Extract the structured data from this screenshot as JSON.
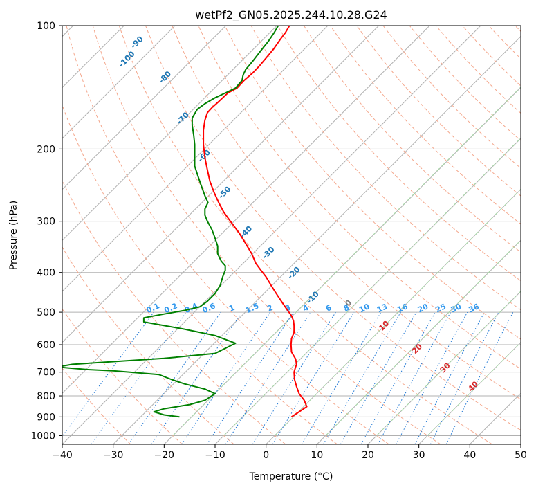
{
  "chart_data": {
    "type": "line",
    "title": "wetPf2_GN05.2025.244.10.28.G24",
    "xlabel": "Temperature (°C)",
    "ylabel": "Pressure (hPa)",
    "xlim": [
      -40,
      50
    ],
    "ylim": [
      1050,
      100
    ],
    "y_scale": "log",
    "grid": true,
    "x_ticks": [
      "−40",
      "−30",
      "−20",
      "−10",
      "0",
      "10",
      "20",
      "30",
      "40",
      "50"
    ],
    "y_ticks": [
      "100",
      "200",
      "300",
      "400",
      "500",
      "600",
      "700",
      "800",
      "900",
      "1000"
    ],
    "series": [
      {
        "color": "#ff0000",
        "points": [
          [
            5,
            900
          ],
          [
            6.5,
            875
          ],
          [
            8,
            850
          ],
          [
            7.5,
            820
          ],
          [
            6.5,
            790
          ],
          [
            6,
            760
          ],
          [
            5.6,
            730
          ],
          [
            5.5,
            700
          ],
          [
            5.8,
            680
          ],
          [
            6,
            670
          ],
          [
            5.8,
            650
          ],
          [
            5,
            625
          ],
          [
            4.9,
            600
          ],
          [
            5,
            580
          ],
          [
            5.5,
            560
          ],
          [
            5.5,
            540
          ],
          [
            5.4,
            525
          ],
          [
            5,
            510
          ],
          [
            4,
            490
          ],
          [
            3,
            470
          ],
          [
            2,
            450
          ],
          [
            1,
            430
          ],
          [
            0,
            410
          ],
          [
            -1,
            395
          ],
          [
            -2,
            380
          ],
          [
            -2.8,
            360
          ],
          [
            -4,
            340
          ],
          [
            -5.3,
            320
          ],
          [
            -7,
            300
          ],
          [
            -8.3,
            285
          ],
          [
            -9.3,
            270
          ],
          [
            -10.2,
            255
          ],
          [
            -11,
            240
          ],
          [
            -11.5,
            225
          ],
          [
            -12,
            210
          ],
          [
            -12.3,
            195
          ],
          [
            -12.3,
            180
          ],
          [
            -12,
            170
          ],
          [
            -11.5,
            163
          ],
          [
            -10.5,
            158
          ],
          [
            -9.5,
            154
          ],
          [
            -8.5,
            150
          ],
          [
            -7.5,
            146
          ],
          [
            -5.7,
            142
          ],
          [
            -4.3,
            136
          ],
          [
            -2.5,
            130
          ],
          [
            -1.2,
            125
          ],
          [
            0,
            120
          ],
          [
            1.5,
            114
          ],
          [
            2.8,
            108
          ],
          [
            3.8,
            104
          ],
          [
            4.6,
            100
          ]
        ]
      },
      {
        "color": "#008000",
        "points": [
          [
            -17,
            900
          ],
          [
            -20,
            890
          ],
          [
            -22,
            875
          ],
          [
            -20,
            860
          ],
          [
            -15,
            840
          ],
          [
            -12,
            820
          ],
          [
            -10,
            790
          ],
          [
            -12,
            770
          ],
          [
            -16,
            748
          ],
          [
            -18.5,
            730
          ],
          [
            -21,
            710
          ],
          [
            -30,
            695
          ],
          [
            -35,
            690
          ],
          [
            -41,
            680
          ],
          [
            -38,
            670
          ],
          [
            -30,
            660
          ],
          [
            -20,
            648
          ],
          [
            -10,
            630
          ],
          [
            -6,
            595
          ],
          [
            -10,
            570
          ],
          [
            -16,
            550
          ],
          [
            -24,
            528
          ],
          [
            -24,
            516
          ],
          [
            -20,
            505
          ],
          [
            -16,
            495
          ],
          [
            -13,
            485
          ],
          [
            -11.5,
            470
          ],
          [
            -10,
            450
          ],
          [
            -9,
            430
          ],
          [
            -8.5,
            410
          ],
          [
            -8,
            395
          ],
          [
            -8,
            385
          ],
          [
            -8.8,
            375
          ],
          [
            -9.5,
            360
          ],
          [
            -9.5,
            345
          ],
          [
            -10,
            330
          ],
          [
            -10.6,
            315
          ],
          [
            -11.5,
            300
          ],
          [
            -12,
            290
          ],
          [
            -12,
            280
          ],
          [
            -11.4,
            270
          ],
          [
            -12,
            260
          ],
          [
            -12.5,
            250
          ],
          [
            -13,
            240
          ],
          [
            -13.5,
            230
          ],
          [
            -14,
            220
          ],
          [
            -14,
            205
          ],
          [
            -14,
            195
          ],
          [
            -14.2,
            185
          ],
          [
            -14.5,
            175
          ],
          [
            -14.5,
            168
          ],
          [
            -13.5,
            160
          ],
          [
            -12,
            155
          ],
          [
            -10,
            150
          ],
          [
            -8,
            146
          ],
          [
            -6,
            142
          ],
          [
            -4.7,
            136
          ],
          [
            -4.5,
            132
          ],
          [
            -4,
            128
          ],
          [
            -2.6,
            122
          ],
          [
            -1,
            115
          ],
          [
            0.5,
            109
          ],
          [
            1.6,
            104
          ],
          [
            2.4,
            100
          ]
        ]
      }
    ],
    "dry_adiabat_labels": [
      "-100",
      "-90",
      "-80",
      "-70",
      "-60",
      "-50",
      "-40",
      "-30",
      "-20",
      "-10",
      "0",
      "10",
      "20",
      "30",
      "40"
    ],
    "mixing_ratio_labels": [
      "0.1",
      "0.2",
      "0.4",
      "0.6",
      "1",
      "1.5",
      "2",
      "3",
      "4",
      "6",
      "8",
      "10",
      "13",
      "16",
      "20",
      "25",
      "30",
      "36"
    ]
  }
}
